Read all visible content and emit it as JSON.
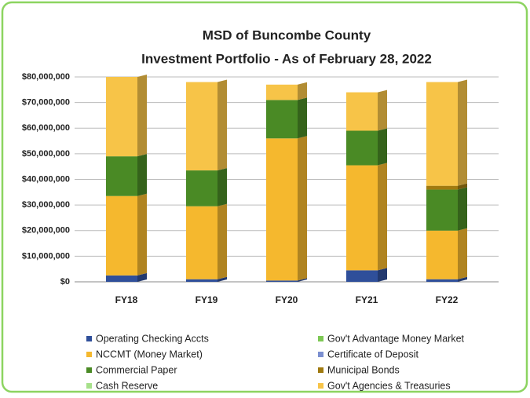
{
  "chart_data": {
    "type": "stacked_bar",
    "title": "MSD of Buncombe County",
    "subtitle": "Investment Portfolio - As of February 28, 2022",
    "categories": [
      "FY18",
      "FY19",
      "FY20",
      "FY21",
      "FY22"
    ],
    "series": [
      {
        "name": "Operating Checking Accts",
        "color": "#2f4f9a",
        "values": [
          2500000,
          1000000,
          500000,
          4500000,
          1000000
        ]
      },
      {
        "name": "Gov't Advantage Money Market",
        "color": "#7dc854",
        "values": [
          0,
          0,
          0,
          0,
          0
        ]
      },
      {
        "name": "NCCMT (Money Market)",
        "color": "#f5b82e",
        "values": [
          31000000,
          28500000,
          55500000,
          41000000,
          19000000
        ]
      },
      {
        "name": "Certificate of Deposit",
        "color": "#7b8fd0",
        "values": [
          0,
          0,
          0,
          0,
          0
        ]
      },
      {
        "name": "Commercial  Paper",
        "color": "#4a8a25",
        "values": [
          15500000,
          14000000,
          15000000,
          13500000,
          16000000
        ]
      },
      {
        "name": "Municipal Bonds",
        "color": "#a07a10",
        "values": [
          0,
          0,
          0,
          0,
          1500000
        ]
      },
      {
        "name": "Cash  Reserve",
        "color": "#a6e08a",
        "values": [
          0,
          0,
          0,
          0,
          0
        ]
      },
      {
        "name": "Gov't Agencies & Treasuries",
        "color": "#f7c448",
        "values": [
          31000000,
          34500000,
          6000000,
          15000000,
          40500000
        ]
      }
    ],
    "ylim": [
      0,
      80000000
    ],
    "yticks": [
      {
        "value": 0,
        "label": "$0"
      },
      {
        "value": 10000000,
        "label": "$10,000,000"
      },
      {
        "value": 20000000,
        "label": "$20,000,000"
      },
      {
        "value": 30000000,
        "label": "$30,000,000"
      },
      {
        "value": 40000000,
        "label": "$40,000,000"
      },
      {
        "value": 50000000,
        "label": "$50,000,000"
      },
      {
        "value": 60000000,
        "label": "$60,000,000"
      },
      {
        "value": 70000000,
        "label": "$70,000,000"
      },
      {
        "value": 80000000,
        "label": "$80,000,000"
      }
    ],
    "grid": true
  }
}
